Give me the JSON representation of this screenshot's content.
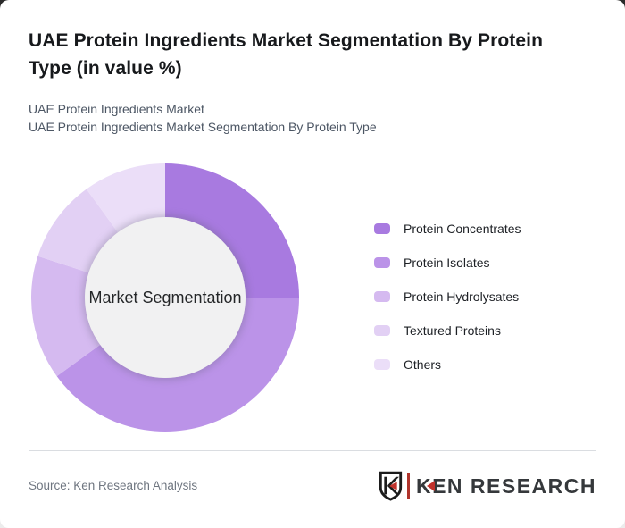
{
  "page": {
    "title": "UAE Protein Ingredients Market Segmentation By Protein Type (in value %)",
    "subtitle_line1": "UAE Protein Ingredients Market",
    "subtitle_line2": "UAE Protein Ingredients Market Segmentation By Protein Type"
  },
  "chart_data": {
    "type": "pie",
    "variant": "donut",
    "title": "UAE Protein Ingredients Market Segmentation By Protein Type (in value %)",
    "center_label": "Market Segmentation",
    "categories": [
      "Protein Concentrates",
      "Protein Isolates",
      "Protein Hydrolysates",
      "Textured Proteins",
      "Others"
    ],
    "values": [
      25,
      40,
      15,
      10,
      10
    ],
    "unit": "value %",
    "colors": [
      "#a87ae0",
      "#bb93e8",
      "#d5baf0",
      "#e2d0f4",
      "#ebdef8"
    ],
    "inner_circle_color": "#f1f1f2",
    "start_angle_deg": 0,
    "direction": "clockwise",
    "legend_position": "right",
    "value_labels_shown": false
  },
  "footer": {
    "source": "Source: Ken Research Analysis",
    "logo_shield_letter": "K",
    "logo_text": "KEN RESEARCH",
    "logo_red": "#c0322c",
    "logo_dark": "#35383b"
  }
}
